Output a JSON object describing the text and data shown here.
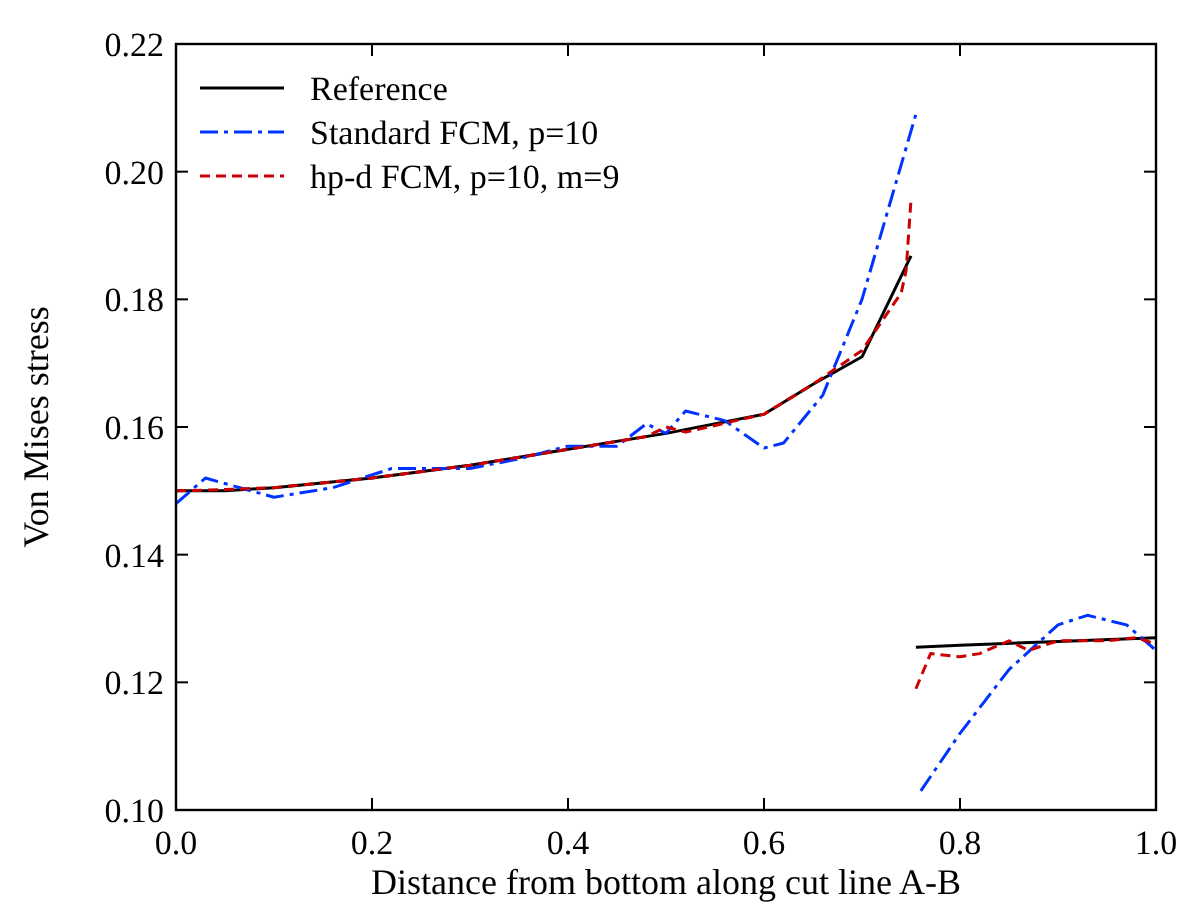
{
  "chart_data": {
    "type": "line",
    "xlabel": "Distance from bottom along cut line A-B",
    "ylabel": "Von Mises stress",
    "xlim": [
      0,
      1
    ],
    "ylim": [
      0.1,
      0.22
    ],
    "xticks": [
      {
        "value": 0,
        "label": "0.0"
      },
      {
        "value": 0.2,
        "label": "0.2"
      },
      {
        "value": 0.4,
        "label": "0.4"
      },
      {
        "value": 0.6,
        "label": "0.6"
      },
      {
        "value": 0.8,
        "label": "0.8"
      },
      {
        "value": 1,
        "label": "1.0"
      }
    ],
    "yticks": [
      {
        "value": 0.1,
        "label": "0.10"
      },
      {
        "value": 0.12,
        "label": "0.12"
      },
      {
        "value": 0.14,
        "label": "0.14"
      },
      {
        "value": 0.16,
        "label": "0.16"
      },
      {
        "value": 0.18,
        "label": "0.18"
      },
      {
        "value": 0.2,
        "label": "0.20"
      },
      {
        "value": 0.22,
        "label": "0.22"
      }
    ],
    "legend": "top left",
    "grid": false,
    "series": [
      {
        "name": "Reference",
        "color": "#000000",
        "line_style": "solid",
        "x": [
          0,
          0.05,
          0.1,
          0.2,
          0.3,
          0.4,
          0.5,
          0.6,
          0.65,
          0.7,
          0.75,
          0.7525,
          0.755,
          0.8,
          0.9,
          1.0
        ],
        "values": [
          0.15,
          0.15,
          0.1505,
          0.152,
          0.154,
          0.1565,
          0.159,
          0.162,
          0.1667,
          0.171,
          0.1868,
          null,
          0.1255,
          0.1258,
          0.1264,
          0.127
        ]
      },
      {
        "name": "Standard FCM, p=10",
        "color": "#0033ff",
        "line_style": "dashdot",
        "x": [
          0,
          0.03,
          0.1,
          0.16,
          0.22,
          0.3,
          0.35,
          0.4,
          0.45,
          0.48,
          0.5,
          0.52,
          0.56,
          0.6,
          0.62,
          0.66,
          0.7,
          0.755,
          0.7575,
          0.76,
          0.8,
          0.85,
          0.9,
          0.93,
          0.97,
          1.0
        ],
        "values": [
          0.148,
          0.152,
          0.149,
          0.1505,
          0.1535,
          0.1535,
          0.155,
          0.157,
          0.157,
          0.1605,
          0.159,
          0.1625,
          0.161,
          0.1567,
          0.1575,
          0.165,
          0.18,
          0.209,
          null,
          0.103,
          0.112,
          0.122,
          0.129,
          0.1305,
          0.129,
          0.125
        ]
      },
      {
        "name": "hp-d FCM, p=10, m=9",
        "color": "#cc0000",
        "line_style": "dashed",
        "x": [
          0,
          0.05,
          0.1,
          0.2,
          0.3,
          0.4,
          0.48,
          0.5,
          0.52,
          0.6,
          0.65,
          0.7,
          0.74,
          0.745,
          0.75,
          0.7525,
          0.755,
          0.77,
          0.8,
          0.82,
          0.85,
          0.87,
          0.9,
          0.95,
          0.98,
          1.0
        ],
        "values": [
          0.15,
          0.1502,
          0.1505,
          0.152,
          0.154,
          0.1565,
          0.1585,
          0.16,
          0.1592,
          0.162,
          0.1667,
          0.172,
          0.181,
          0.1845,
          0.1956,
          null,
          0.119,
          0.1245,
          0.124,
          0.1245,
          0.1265,
          0.125,
          0.1265,
          0.1265,
          0.127,
          0.126
        ]
      }
    ]
  }
}
